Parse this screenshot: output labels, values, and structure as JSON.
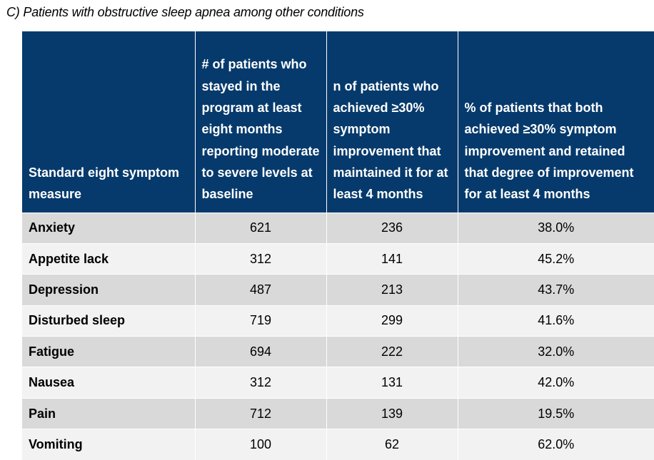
{
  "caption": "C) Patients with obstructive sleep apnea among other conditions",
  "columns": [
    "Standard eight symptom measure",
    "# of patients who stayed in the program at least eight months reporting moderate to severe levels at baseline",
    "n of patients who achieved ≥30% symptom improvement that maintained it for at least 4 months",
    "% of patients that both achieved ≥30% symptom improvement and retained that degree of improvement for at least 4 months"
  ],
  "rows": [
    {
      "measure": "Anxiety",
      "baseline": "621",
      "achieved": "236",
      "percent": "38.0%"
    },
    {
      "measure": "Appetite lack",
      "baseline": "312",
      "achieved": "141",
      "percent": "45.2%"
    },
    {
      "measure": "Depression",
      "baseline": "487",
      "achieved": "213",
      "percent": "43.7%"
    },
    {
      "measure": "Disturbed sleep",
      "baseline": "719",
      "achieved": "299",
      "percent": "41.6%"
    },
    {
      "measure": "Fatigue",
      "baseline": "694",
      "achieved": "222",
      "percent": "32.0%"
    },
    {
      "measure": "Nausea",
      "baseline": "312",
      "achieved": "131",
      "percent": "42.0%"
    },
    {
      "measure": "Pain",
      "baseline": "712",
      "achieved": "139",
      "percent": "19.5%"
    },
    {
      "measure": "Vomiting",
      "baseline": "100",
      "achieved": "62",
      "percent": "62.0%"
    }
  ],
  "colors": {
    "header_bg": "#063a6c",
    "row_shade": "#d9d9d9",
    "row_plain": "#f2f2f2"
  }
}
